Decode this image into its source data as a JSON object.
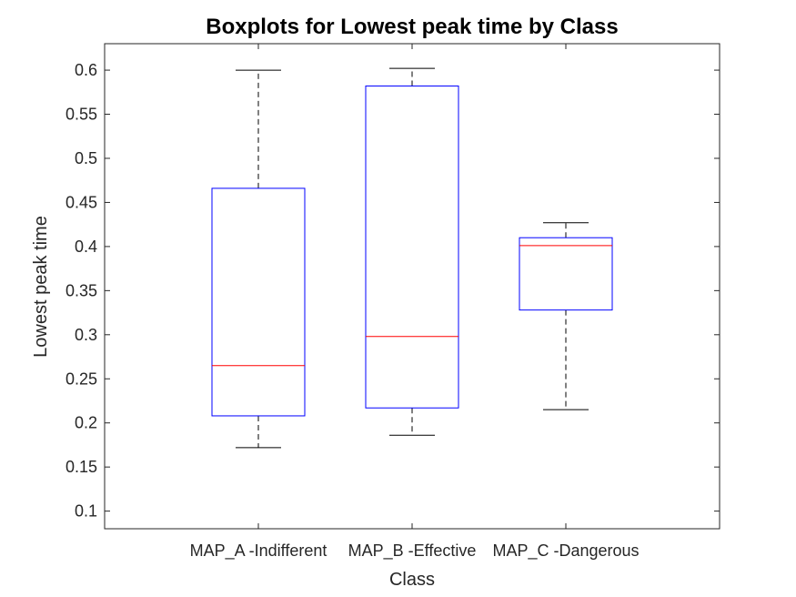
{
  "chart_data": {
    "type": "boxplot",
    "title": "Boxplots for Lowest peak time by Class",
    "xlabel": "Class",
    "ylabel": "Lowest peak time",
    "ylim": [
      0.08,
      0.63
    ],
    "yticks": [
      0.1,
      0.15,
      0.2,
      0.25,
      0.3,
      0.35,
      0.4,
      0.45,
      0.5,
      0.55,
      0.6
    ],
    "ytick_labels": [
      "0.1",
      "0.15",
      "0.2",
      "0.25",
      "0.3",
      "0.35",
      "0.4",
      "0.45",
      "0.5",
      "0.55",
      "0.6"
    ],
    "categories": [
      "MAP_A -Indifferent",
      "MAP_B -Effective",
      "MAP_C -Dangerous"
    ],
    "boxes": [
      {
        "whisker_low": 0.172,
        "q1": 0.208,
        "median": 0.265,
        "q3": 0.466,
        "whisker_high": 0.6
      },
      {
        "whisker_low": 0.186,
        "q1": 0.217,
        "median": 0.298,
        "q3": 0.582,
        "whisker_high": 0.602
      },
      {
        "whisker_low": 0.215,
        "q1": 0.328,
        "median": 0.401,
        "q3": 0.41,
        "whisker_high": 0.427
      }
    ],
    "colors": {
      "box": "#0000ff",
      "median": "#ff0000",
      "whisker": "#000000",
      "axis": "#262626"
    },
    "grid": false,
    "legend": null
  }
}
